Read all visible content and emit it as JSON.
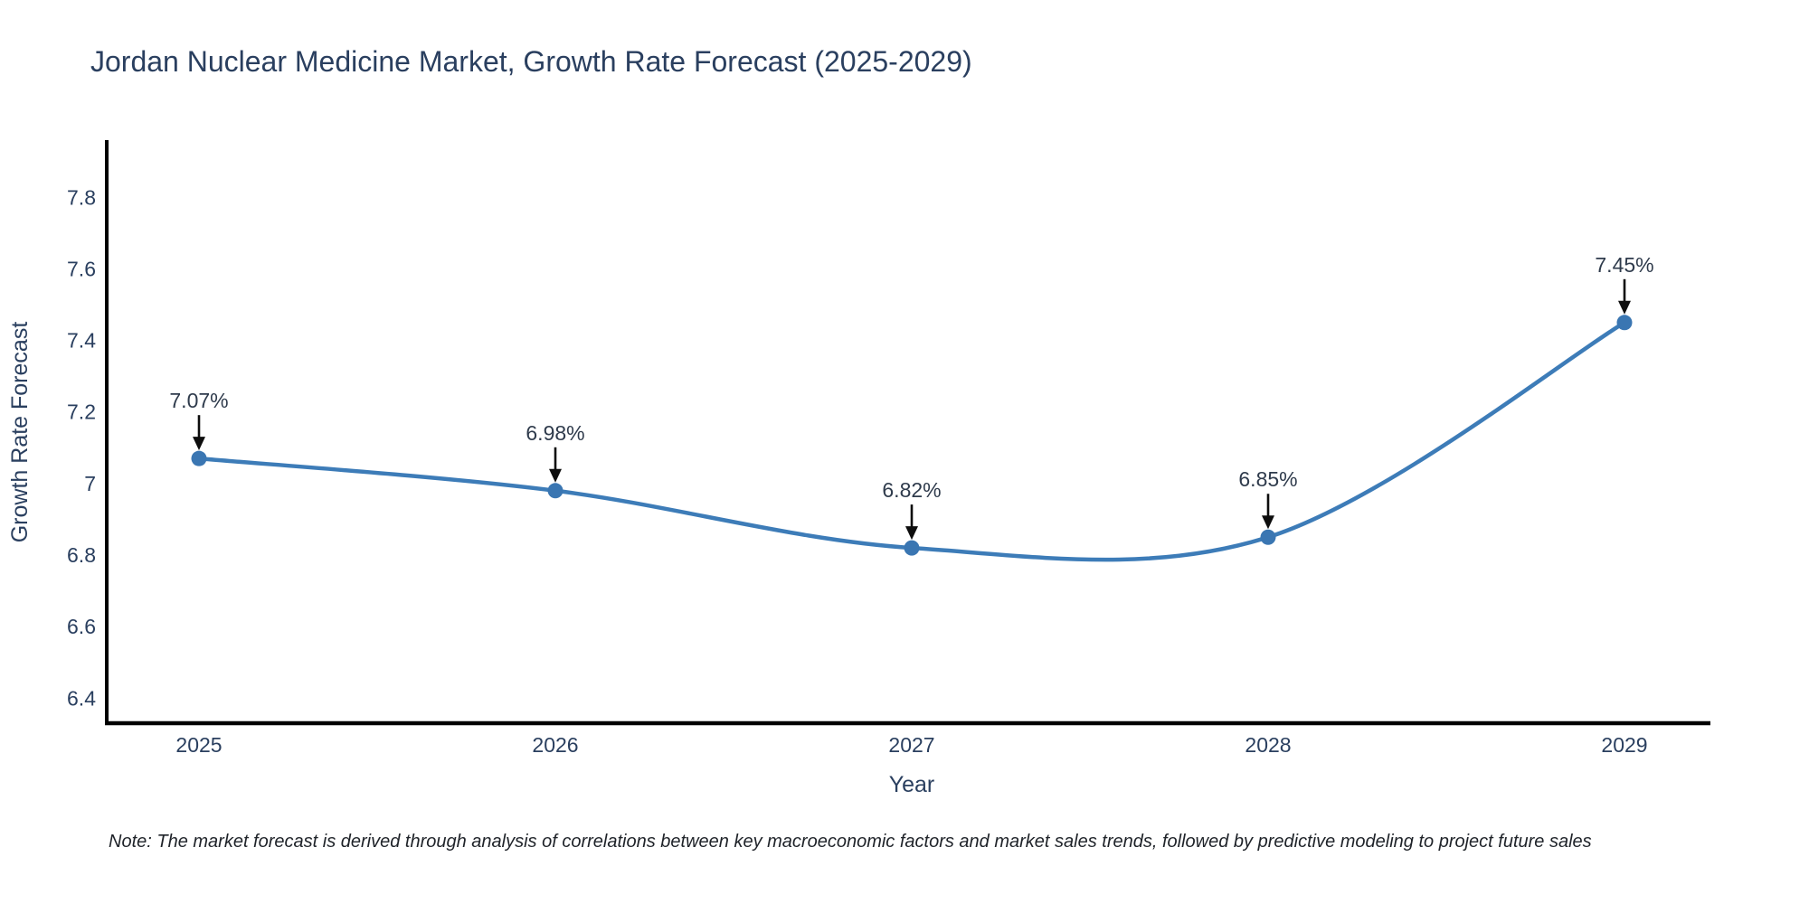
{
  "title": "Jordan Nuclear Medicine Market, Growth Rate Forecast (2025-2029)",
  "note": "Note: The market forecast is derived through analysis of correlations between key macroeconomic factors and market sales trends, followed by predictive modeling to project future sales",
  "chart_data": {
    "type": "line",
    "title": "Jordan Nuclear Medicine Market, Growth Rate Forecast (2025-2029)",
    "x": [
      2025,
      2026,
      2027,
      2028,
      2029
    ],
    "series": [
      {
        "name": "Growth Rate Forecast",
        "values": [
          7.07,
          6.98,
          6.82,
          6.85,
          7.45
        ]
      }
    ],
    "point_labels": [
      "7.07%",
      "6.98%",
      "6.82%",
      "6.85%",
      "7.45%"
    ],
    "xlabel": "Year",
    "ylabel": "Growth Rate Forecast",
    "xticks": [
      "2025",
      "2026",
      "2027",
      "2028",
      "2029"
    ],
    "yticks": [
      6.4,
      6.6,
      6.8,
      7,
      7.2,
      7.4,
      7.6,
      7.8
    ],
    "ylim": [
      6.33,
      7.96
    ],
    "line_shape": "spline",
    "grid": false,
    "legend": "none",
    "colors": {
      "line": "#3d7cb8",
      "marker": "#3a76b2",
      "axis_line": "#000000",
      "tick_text": "#2a3f5f",
      "annotation_text": "#2f3b4c",
      "annotation_arrow": "#0d0d0d",
      "background": "#ffffff"
    }
  }
}
